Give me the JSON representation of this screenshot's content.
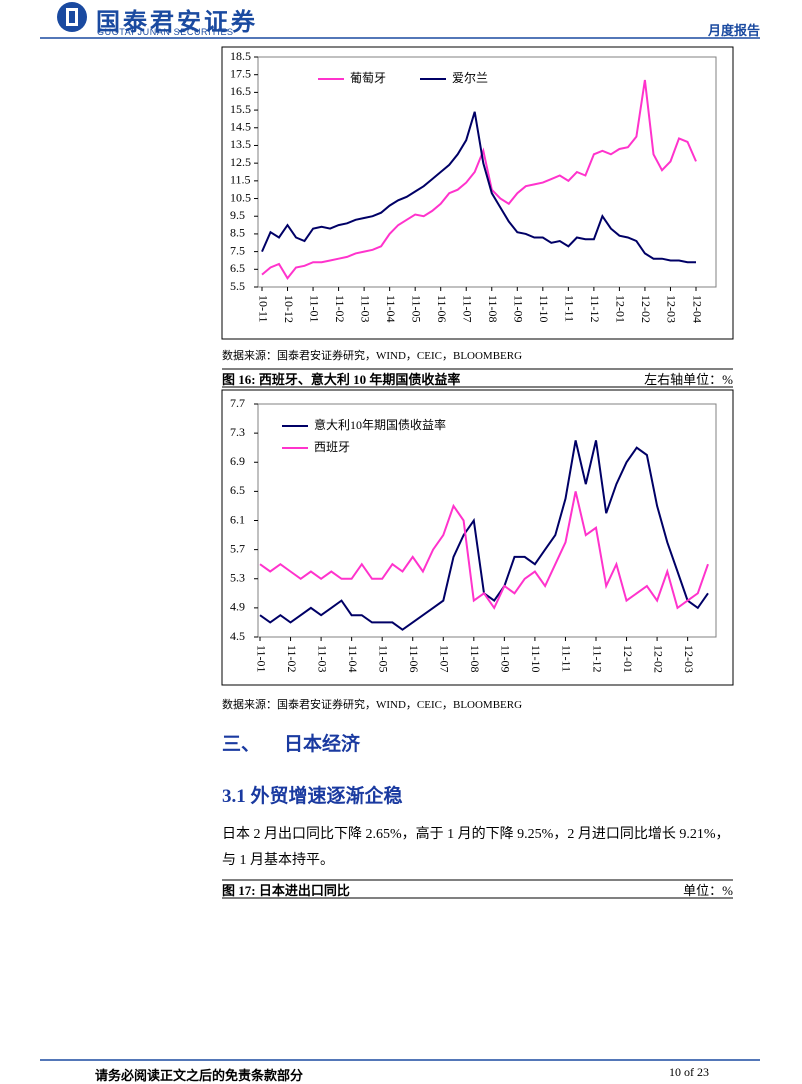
{
  "header": {
    "company_cn": "国泰君安证券",
    "company_en": "GUOTAI JUNAN SECURITIES",
    "report_type": "月度报告"
  },
  "chart_data": [
    {
      "type": "line",
      "legend": "upper center",
      "grid": false,
      "source": "数据来源：国泰君安证券研究，WIND，CEIC，BLOOMBERG",
      "categories": [
        "10-11",
        null,
        null,
        "10-12",
        null,
        null,
        "11-01",
        null,
        null,
        "11-02",
        null,
        null,
        "11-03",
        null,
        null,
        "11-04",
        null,
        null,
        "11-05",
        null,
        null,
        "11-06",
        null,
        null,
        "11-07",
        null,
        null,
        "11-08",
        null,
        null,
        "11-09",
        null,
        null,
        "11-10",
        null,
        null,
        "11-11",
        null,
        null,
        "11-12",
        null,
        null,
        "12-01",
        null,
        null,
        "12-02",
        null,
        null,
        "12-03",
        null,
        null,
        "12-04"
      ],
      "ylim": [
        5.5,
        18.5
      ],
      "yticks": [
        5.5,
        6.5,
        7.5,
        8.5,
        9.5,
        10.5,
        11.5,
        12.5,
        13.5,
        14.5,
        15.5,
        16.5,
        17.5,
        18.5
      ],
      "series": [
        {
          "name": "葡萄牙",
          "color": "#ff33cc",
          "values": [
            6.2,
            6.6,
            6.8,
            6.0,
            6.6,
            6.7,
            6.9,
            6.9,
            7.0,
            7.1,
            7.2,
            7.4,
            7.5,
            7.6,
            7.8,
            8.5,
            9.0,
            9.3,
            9.6,
            9.5,
            9.8,
            10.2,
            10.8,
            11.0,
            11.4,
            12.0,
            13.2,
            11.0,
            10.5,
            10.2,
            10.8,
            11.2,
            11.3,
            11.4,
            11.6,
            11.8,
            11.5,
            12.0,
            11.8,
            13.0,
            13.2,
            13.0,
            13.3,
            13.4,
            14.0,
            17.2,
            13.0,
            12.1,
            12.6,
            13.9,
            13.7,
            12.6
          ]
        },
        {
          "name": "爱尔兰",
          "color": "#000066",
          "values": [
            7.5,
            8.6,
            8.3,
            9.0,
            8.3,
            8.1,
            8.8,
            8.9,
            8.8,
            9.0,
            9.1,
            9.3,
            9.4,
            9.5,
            9.7,
            10.1,
            10.4,
            10.6,
            10.9,
            11.2,
            11.6,
            12.0,
            12.4,
            13.0,
            13.8,
            15.4,
            12.5,
            10.8,
            10.0,
            9.2,
            8.6,
            8.5,
            8.3,
            8.3,
            8.0,
            8.1,
            7.8,
            8.3,
            8.2,
            8.2,
            9.5,
            8.8,
            8.4,
            8.3,
            8.1,
            7.4,
            7.1,
            7.1,
            7.0,
            7.0,
            6.9,
            6.9
          ]
        }
      ]
    },
    {
      "type": "line",
      "legend": "upper left",
      "grid": false,
      "title": "图 16: 西班牙、意大利 10 年期国债收益率",
      "unit_note": "左右轴单位：%",
      "source": "数据来源：国泰君安证券研究，WIND，CEIC，BLOOMBERG",
      "categories": [
        "11-01",
        null,
        null,
        "11-02",
        null,
        null,
        "11-03",
        null,
        null,
        "11-04",
        null,
        null,
        "11-05",
        null,
        null,
        "11-06",
        null,
        null,
        "11-07",
        null,
        null,
        "11-08",
        null,
        null,
        "11-09",
        null,
        null,
        "11-10",
        null,
        null,
        "11-11",
        null,
        null,
        "11-12",
        null,
        null,
        "12-01",
        null,
        null,
        "12-02",
        null,
        null,
        "12-03",
        null,
        null
      ],
      "ylim": [
        4.5,
        7.7
      ],
      "yticks": [
        4.5,
        4.9,
        5.3,
        5.7,
        6.1,
        6.5,
        6.9,
        7.3,
        7.7
      ],
      "series": [
        {
          "name": "意大利10年期国债收益率",
          "color": "#000066",
          "values": [
            4.8,
            4.7,
            4.8,
            4.7,
            4.8,
            4.9,
            4.8,
            4.9,
            5.0,
            4.8,
            4.8,
            4.7,
            4.7,
            4.7,
            4.6,
            4.7,
            4.8,
            4.9,
            5.0,
            5.6,
            5.9,
            6.1,
            5.1,
            5.0,
            5.2,
            5.6,
            5.6,
            5.5,
            5.7,
            5.9,
            6.4,
            7.2,
            6.6,
            7.2,
            6.2,
            6.6,
            6.9,
            7.1,
            7.0,
            6.3,
            5.8,
            5.4,
            5.0,
            4.9,
            5.1
          ]
        },
        {
          "name": "西班牙",
          "color": "#ff33cc",
          "values": [
            5.5,
            5.4,
            5.5,
            5.4,
            5.3,
            5.4,
            5.3,
            5.4,
            5.3,
            5.3,
            5.5,
            5.3,
            5.3,
            5.5,
            5.4,
            5.6,
            5.4,
            5.7,
            5.9,
            6.3,
            6.1,
            5.0,
            5.1,
            4.9,
            5.2,
            5.1,
            5.3,
            5.4,
            5.2,
            5.5,
            5.8,
            6.5,
            5.9,
            6.0,
            5.2,
            5.5,
            5.0,
            5.1,
            5.2,
            5.0,
            5.4,
            4.9,
            5.0,
            5.1,
            5.5
          ]
        }
      ]
    }
  ],
  "section_heading": {
    "number": "三、",
    "title": "日本经济"
  },
  "subsection_heading": "3.1 外贸增速逐渐企稳",
  "paragraph": "日本 2 月出口同比下降 2.65%，高于 1 月的下降 9.25%，2 月进口同比增长 9.21%，与 1 月基本持平。",
  "figure_17": {
    "title": "图 17: 日本进出口同比",
    "unit_note": "单位：%"
  },
  "footer": {
    "disclaimer": "请务必阅读正文之后的免责条款部分",
    "page": "10 of 23"
  }
}
